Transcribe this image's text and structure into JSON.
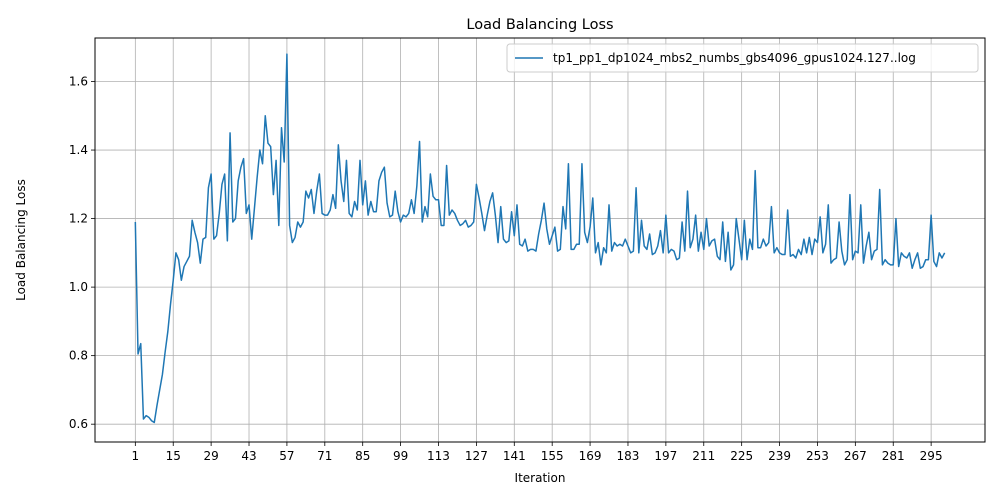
{
  "chart_data": {
    "type": "line",
    "title": "Load Balancing Loss",
    "xlabel": "Iteration",
    "ylabel": "Load Balancing Loss",
    "xlim": [
      -13.9,
      314.9
    ],
    "ylim": [
      0.548,
      1.727
    ],
    "x_ticks": [
      1,
      15,
      29,
      43,
      57,
      71,
      85,
      99,
      113,
      127,
      141,
      155,
      169,
      183,
      197,
      211,
      225,
      239,
      253,
      267,
      281,
      295
    ],
    "y_ticks": [
      0.6,
      0.8,
      1.0,
      1.2,
      1.4,
      1.6
    ],
    "grid": true,
    "legend_position": "top-right",
    "color": "#1f77b4",
    "series": [
      {
        "name": "tp1_pp1_dp1024_mbs2_numbs_gbs4096_gpus1024.127..log",
        "x_start": 1,
        "x_step": 1,
        "values": [
          1.19,
          0.805,
          0.835,
          0.615,
          0.625,
          0.62,
          0.61,
          0.605,
          0.655,
          0.7,
          0.745,
          0.81,
          0.87,
          0.95,
          1.02,
          1.1,
          1.08,
          1.02,
          1.06,
          1.075,
          1.09,
          1.195,
          1.16,
          1.13,
          1.07,
          1.14,
          1.145,
          1.29,
          1.33,
          1.14,
          1.15,
          1.215,
          1.3,
          1.33,
          1.135,
          1.45,
          1.19,
          1.2,
          1.31,
          1.35,
          1.375,
          1.215,
          1.24,
          1.14,
          1.23,
          1.32,
          1.4,
          1.36,
          1.5,
          1.42,
          1.41,
          1.27,
          1.37,
          1.18,
          1.465,
          1.365,
          1.68,
          1.18,
          1.13,
          1.145,
          1.19,
          1.175,
          1.19,
          1.28,
          1.26,
          1.285,
          1.215,
          1.28,
          1.33,
          1.215,
          1.21,
          1.21,
          1.225,
          1.27,
          1.23,
          1.415,
          1.31,
          1.25,
          1.37,
          1.215,
          1.205,
          1.25,
          1.225,
          1.37,
          1.24,
          1.31,
          1.21,
          1.25,
          1.22,
          1.22,
          1.31,
          1.335,
          1.35,
          1.245,
          1.205,
          1.21,
          1.28,
          1.22,
          1.19,
          1.21,
          1.205,
          1.215,
          1.255,
          1.215,
          1.295,
          1.425,
          1.19,
          1.235,
          1.205,
          1.33,
          1.265,
          1.255,
          1.255,
          1.18,
          1.18,
          1.355,
          1.21,
          1.225,
          1.215,
          1.195,
          1.18,
          1.185,
          1.195,
          1.175,
          1.18,
          1.19,
          1.3,
          1.26,
          1.215,
          1.165,
          1.21,
          1.25,
          1.275,
          1.21,
          1.13,
          1.235,
          1.14,
          1.13,
          1.135,
          1.22,
          1.15,
          1.24,
          1.125,
          1.12,
          1.14,
          1.105,
          1.11,
          1.11,
          1.105,
          1.155,
          1.195,
          1.245,
          1.17,
          1.125,
          1.15,
          1.175,
          1.105,
          1.11,
          1.235,
          1.17,
          1.36,
          1.11,
          1.11,
          1.125,
          1.125,
          1.36,
          1.16,
          1.13,
          1.175,
          1.26,
          1.1,
          1.13,
          1.065,
          1.115,
          1.1,
          1.24,
          1.105,
          1.13,
          1.12,
          1.125,
          1.12,
          1.14,
          1.12,
          1.1,
          1.105,
          1.29,
          1.1,
          1.195,
          1.12,
          1.11,
          1.155,
          1.095,
          1.1,
          1.12,
          1.165,
          1.1,
          1.21,
          1.1,
          1.11,
          1.105,
          1.08,
          1.085,
          1.19,
          1.105,
          1.28,
          1.115,
          1.14,
          1.21,
          1.105,
          1.16,
          1.11,
          1.2,
          1.12,
          1.135,
          1.14,
          1.09,
          1.08,
          1.19,
          1.075,
          1.16,
          1.05,
          1.065,
          1.2,
          1.14,
          1.08,
          1.195,
          1.08,
          1.14,
          1.11,
          1.34,
          1.115,
          1.115,
          1.14,
          1.12,
          1.13,
          1.235,
          1.1,
          1.115,
          1.1,
          1.095,
          1.095,
          1.225,
          1.09,
          1.095,
          1.085,
          1.11,
          1.095,
          1.14,
          1.1,
          1.145,
          1.095,
          1.14,
          1.13,
          1.205,
          1.1,
          1.125,
          1.24,
          1.07,
          1.08,
          1.085,
          1.19,
          1.105,
          1.065,
          1.08,
          1.27,
          1.08,
          1.105,
          1.1,
          1.24,
          1.07,
          1.12,
          1.16,
          1.08,
          1.105,
          1.11,
          1.285,
          1.065,
          1.08,
          1.07,
          1.065,
          1.065,
          1.2,
          1.06,
          1.1,
          1.09,
          1.085,
          1.1,
          1.055,
          1.08,
          1.1,
          1.055,
          1.06,
          1.08,
          1.08,
          1.21,
          1.075,
          1.06,
          1.1,
          1.085,
          1.1
        ]
      }
    ]
  }
}
